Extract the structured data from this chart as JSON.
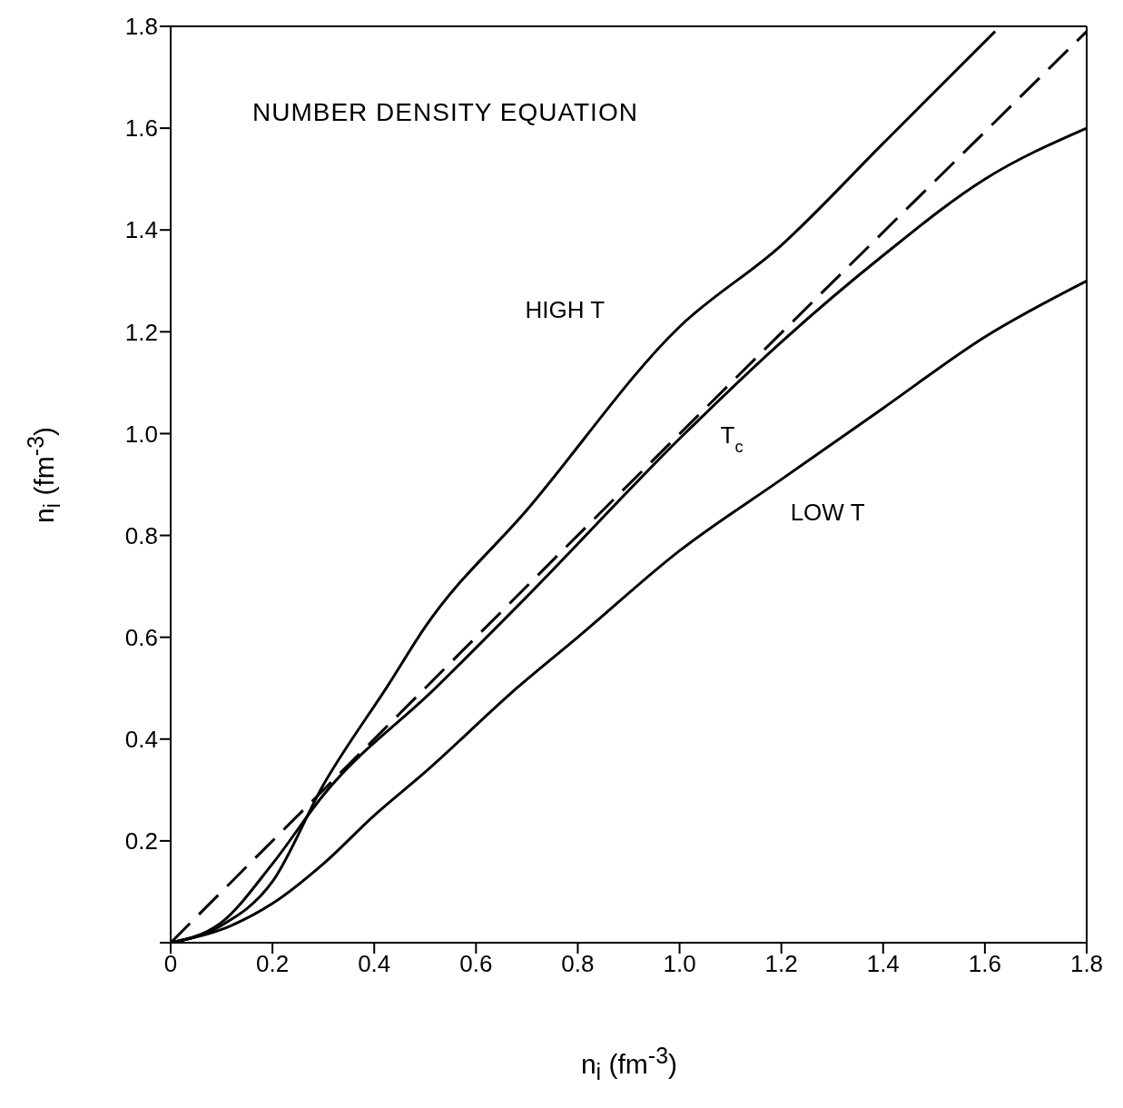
{
  "chart_data": {
    "type": "line",
    "xlabel": "n$_{i}$ (fm$^{-3}$)",
    "ylabel": "n$_{i}$ (fm$^{-3}$)",
    "annotations": [
      "NUMBER DENSITY EQUATION"
    ],
    "xlim": [
      0,
      1.8
    ],
    "ylim": [
      0,
      1.8
    ],
    "xticks": [
      0,
      0.2,
      0.4,
      0.6,
      0.8,
      {
        "value": 1,
        "label": "1.0"
      },
      1.2,
      1.4,
      1.6,
      1.8
    ],
    "yticks": [
      {
        "value": 0,
        "label": null
      },
      0.2,
      0.4,
      0.6,
      0.8,
      {
        "value": 1,
        "label": "1.0"
      },
      1.2,
      1.4,
      1.6,
      1.8
    ],
    "marker": "none",
    "series": [
      {
        "name": "HIGH T",
        "color": "#000000",
        "line_style": "solid",
        "x": [
          0,
          0.1,
          0.2,
          0.3,
          0.43,
          0.5,
          0.7,
          1.0,
          1.2,
          1.4,
          1.62
        ],
        "values": [
          0,
          0.034,
          0.12,
          0.31,
          0.51,
          0.62,
          0.85,
          1.21,
          1.37,
          1.57,
          1.79
        ]
      },
      {
        "name": "T$_{c}$",
        "color": "#000000",
        "line_style": "solid",
        "x": [
          0,
          0.1,
          0.2,
          0.3,
          0.52,
          0.7,
          1.0,
          1.2,
          1.4,
          1.6,
          1.8
        ],
        "values": [
          0,
          0.04,
          0.155,
          0.29,
          0.5,
          0.68,
          0.99,
          1.18,
          1.35,
          1.5,
          1.6
        ]
      },
      {
        "name": "LOW T",
        "color": "#000000",
        "line_style": "solid",
        "x": [
          0,
          0.1,
          0.2,
          0.3,
          0.4,
          0.5,
          0.68,
          0.8,
          1.0,
          1.2,
          1.4,
          1.6,
          1.8
        ],
        "values": [
          0,
          0.026,
          0.077,
          0.155,
          0.25,
          0.335,
          0.5,
          0.6,
          0.77,
          0.91,
          1.05,
          1.19,
          1.3
        ]
      },
      {
        "color": "#000000",
        "line_style": "dashed",
        "x": [
          0,
          0.45,
          0.9,
          1.8
        ],
        "values": [
          0,
          0.45,
          0.9,
          1.79
        ]
      }
    ]
  }
}
